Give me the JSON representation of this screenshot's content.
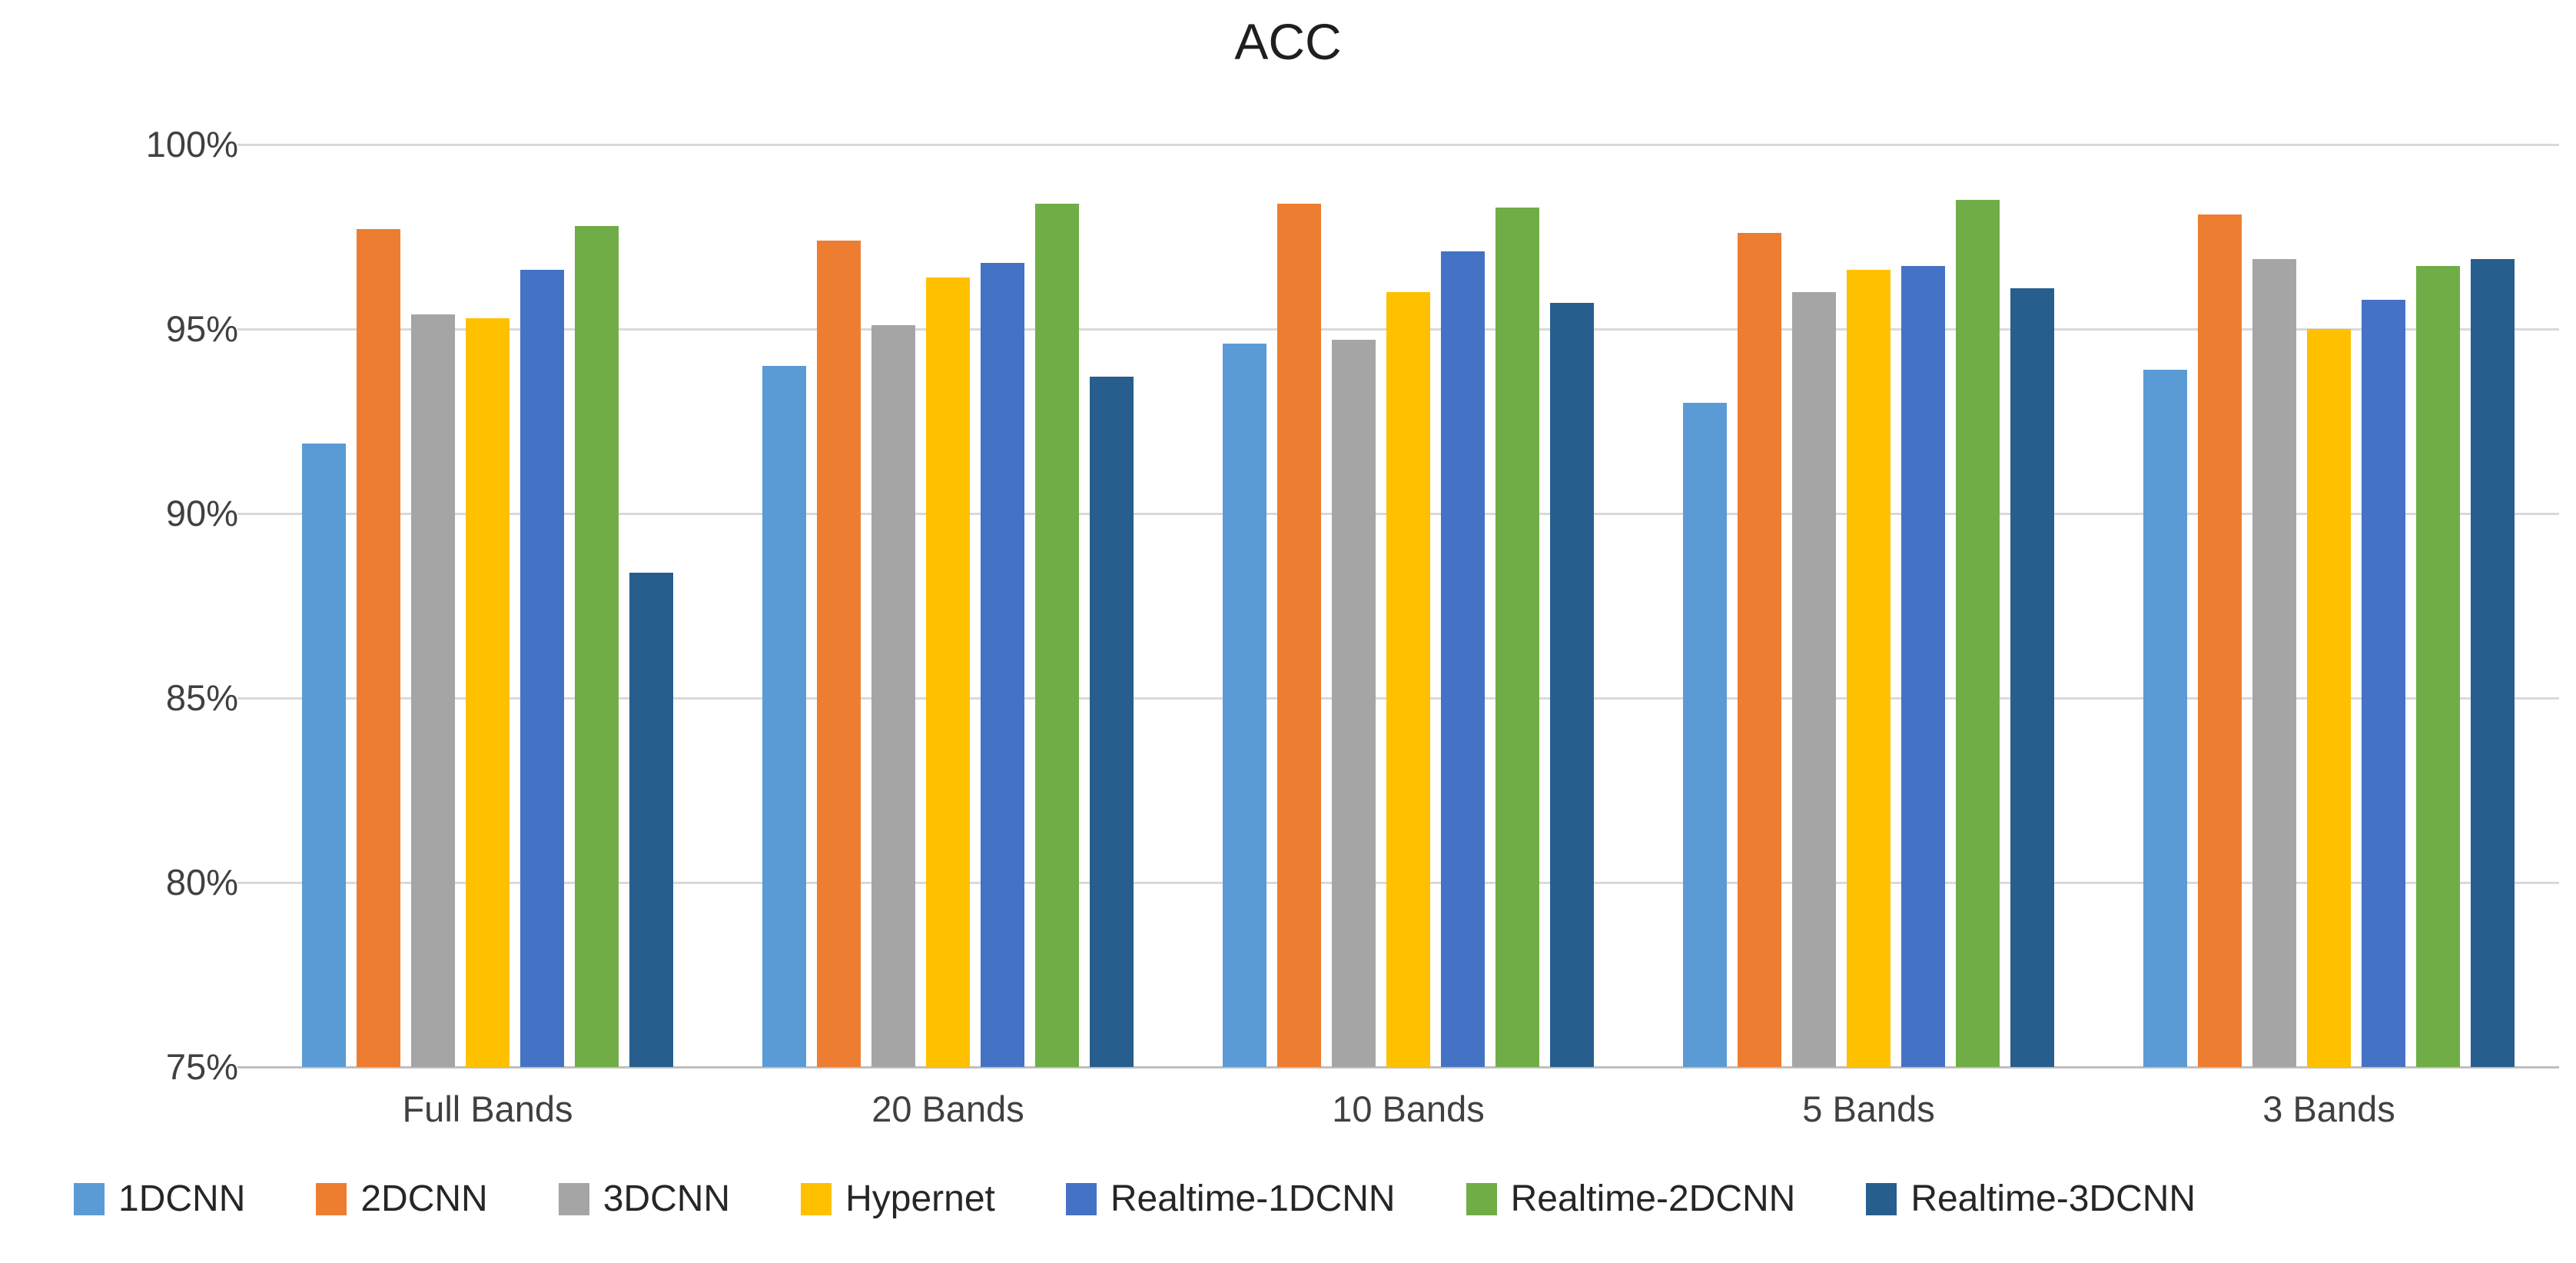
{
  "title": "ACC",
  "chart_data": {
    "type": "bar",
    "title": "ACC",
    "categories": [
      "Full Bands",
      "20 Bands",
      "10 Bands",
      "5 Bands",
      "3 Bands"
    ],
    "series": [
      {
        "name": "1DCNN",
        "color": "#5B9BD5",
        "values": [
          91.9,
          94.0,
          94.6,
          93.0,
          93.9
        ]
      },
      {
        "name": "2DCNN",
        "color": "#ED7D31",
        "values": [
          97.7,
          97.4,
          98.4,
          97.6,
          98.1
        ]
      },
      {
        "name": "3DCNN",
        "color": "#A5A5A5",
        "values": [
          95.4,
          95.1,
          94.7,
          96.0,
          96.9
        ]
      },
      {
        "name": "Hypernet",
        "color": "#FFC000",
        "values": [
          95.3,
          96.4,
          96.0,
          96.6,
          95.0
        ]
      },
      {
        "name": "Realtime-1DCNN",
        "color": "#4472C4",
        "values": [
          96.6,
          96.8,
          97.1,
          96.7,
          95.8
        ]
      },
      {
        "name": "Realtime-2DCNN",
        "color": "#70AD47",
        "values": [
          97.8,
          98.4,
          98.3,
          98.5,
          96.7
        ]
      },
      {
        "name": "Realtime-3DCNN",
        "color": "#275E8D",
        "values": [
          88.4,
          93.7,
          95.7,
          96.1,
          96.9
        ]
      }
    ],
    "ylim": [
      75,
      100
    ],
    "ytick_labels": [
      "100%",
      "95%",
      "90%",
      "85%",
      "80%",
      "75%"
    ],
    "ytick_values": [
      100,
      95,
      90,
      85,
      80,
      75
    ],
    "xlabel": "",
    "ylabel": "",
    "grid": true,
    "legend_position": "bottom",
    "gridline_color": "#D9D9D9",
    "axis_text_color": "#404040"
  }
}
